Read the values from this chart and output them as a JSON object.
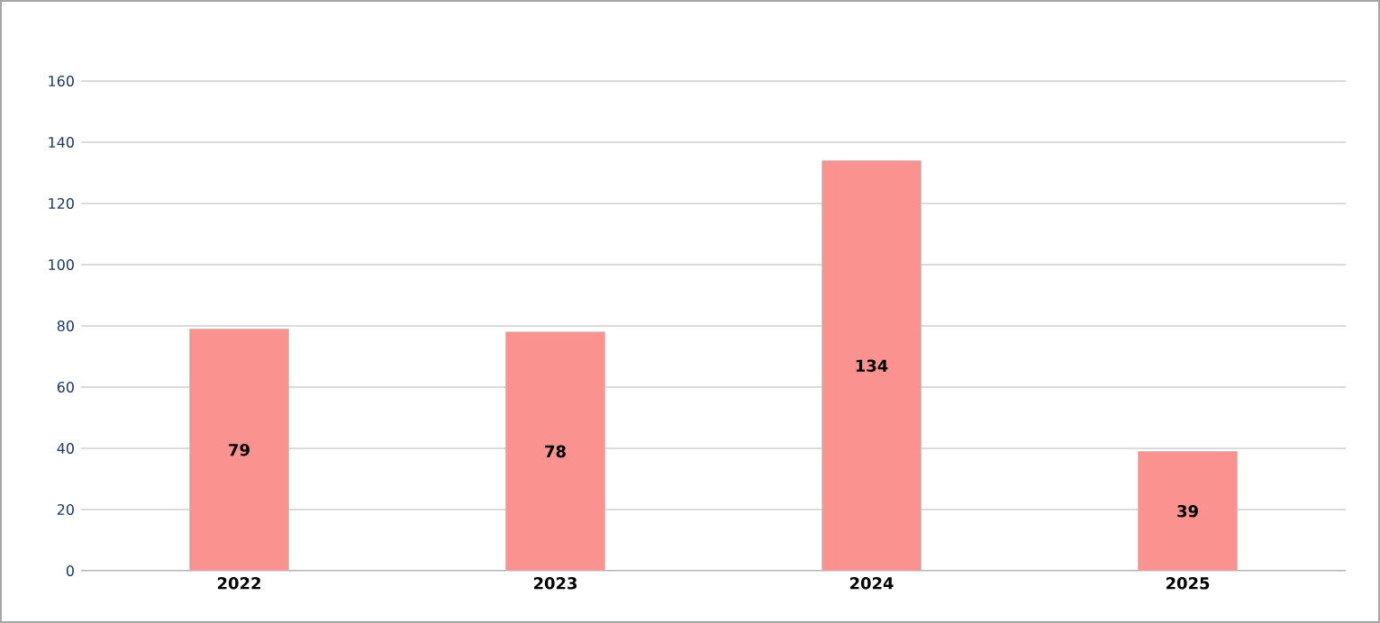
{
  "chart_data": {
    "type": "bar",
    "categories": [
      "2022",
      "2023",
      "2024",
      "2025"
    ],
    "values": [
      79,
      78,
      134,
      39
    ],
    "color": "#fa9290",
    "ylim": [
      0,
      160
    ],
    "yticks": [
      0,
      20,
      40,
      60,
      80,
      100,
      120,
      140,
      160
    ],
    "grid": "y",
    "data_labels": true
  }
}
